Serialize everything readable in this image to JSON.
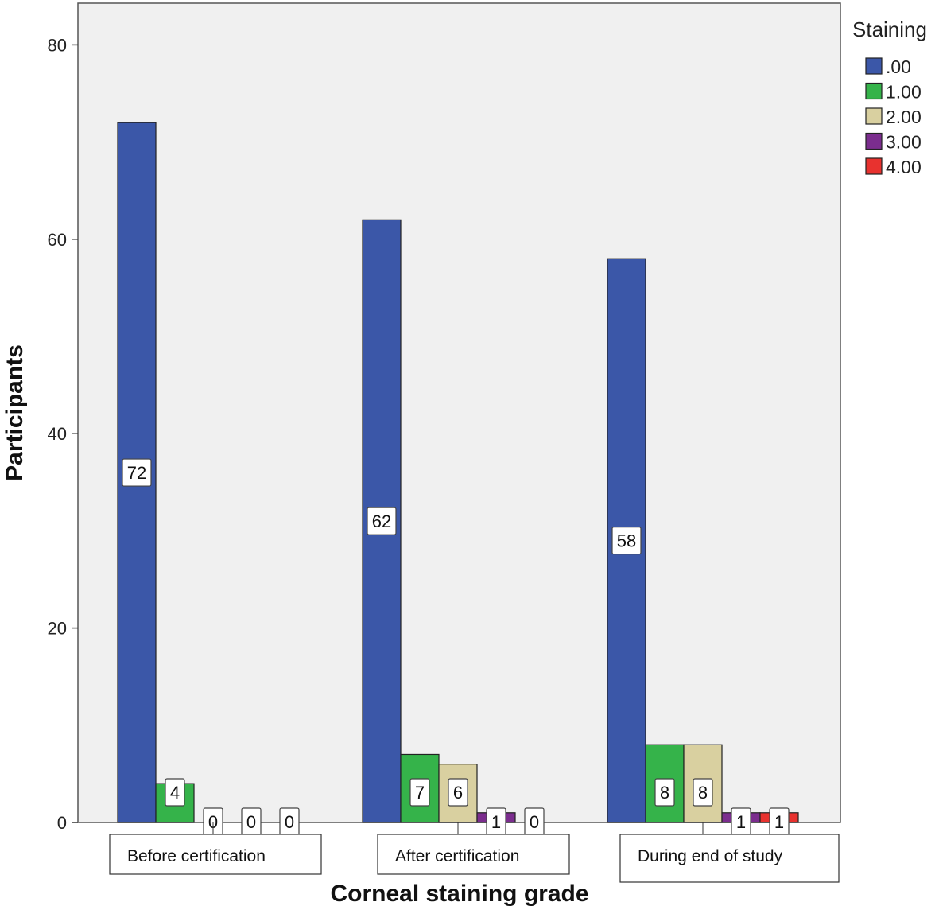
{
  "chart_data": {
    "type": "bar",
    "xlabel": "Corneal staining grade",
    "ylabel": "Participants",
    "ylim": [
      0,
      85
    ],
    "yticks": [
      0,
      20,
      40,
      60,
      80
    ],
    "grid": false,
    "legend": {
      "title": "Staining",
      "placement": "right"
    },
    "categories": [
      "Before certification",
      "After certification",
      "During end of study"
    ],
    "series": [
      {
        "name": ".00",
        "color": "#3b57a8",
        "values": [
          72,
          62,
          58
        ]
      },
      {
        "name": "1.00",
        "color": "#35b34a",
        "values": [
          4,
          7,
          8
        ]
      },
      {
        "name": "2.00",
        "color": "#d9d0a0",
        "values": [
          0,
          6,
          8
        ]
      },
      {
        "name": "3.00",
        "color": "#7b2d8e",
        "values": [
          0,
          1,
          1
        ]
      },
      {
        "name": "4.00",
        "color": "#e8322f",
        "values": [
          0,
          0,
          1
        ]
      }
    ],
    "data_labels": [
      [
        "72",
        "62",
        "58"
      ],
      [
        "4",
        "7",
        "8"
      ],
      [
        "0",
        "6",
        "8"
      ],
      [
        "0",
        "1",
        "1"
      ],
      [
        "0",
        "0",
        "1"
      ]
    ],
    "plot_background": "#f0f0f0"
  }
}
